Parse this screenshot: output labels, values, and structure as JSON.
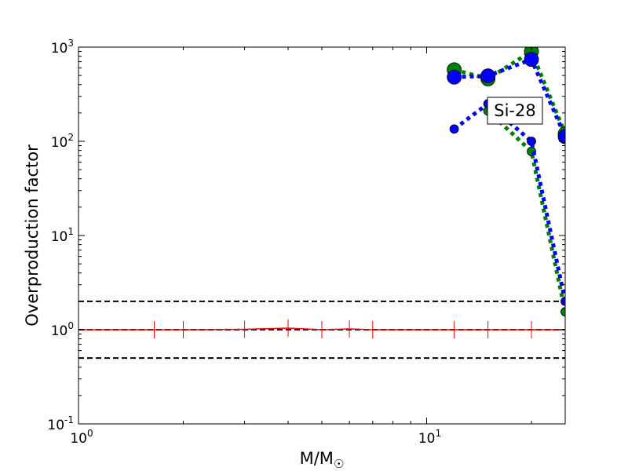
{
  "chart_data": {
    "type": "line",
    "xscale": "log",
    "yscale": "log",
    "xlim": [
      1,
      25
    ],
    "ylim": [
      0.1,
      1000
    ],
    "xlabel": "M/M",
    "xlabel_sub": "☉",
    "ylabel": "Overproduction factor",
    "x_ticks": [
      {
        "value": 1,
        "base": "10",
        "exp": "0"
      },
      {
        "value": 10,
        "base": "10",
        "exp": "1"
      }
    ],
    "y_ticks": [
      {
        "value": 0.1,
        "base": "10",
        "exp": "-1"
      },
      {
        "value": 1,
        "base": "10",
        "exp": "0"
      },
      {
        "value": 10,
        "base": "10",
        "exp": "1"
      },
      {
        "value": 100,
        "base": "10",
        "exp": "2"
      },
      {
        "value": 1000,
        "base": "10",
        "exp": "3"
      }
    ],
    "annotation": "Si-28",
    "reference_lines": [
      {
        "y": 2.0,
        "color": "#000000",
        "style": "dashed"
      },
      {
        "y": 1.0,
        "color": "#000000",
        "style": "dashed"
      },
      {
        "y": 0.5,
        "color": "#000000",
        "style": "dashed"
      }
    ],
    "series": [
      {
        "color": "#ff0000",
        "style": "solid",
        "marker": "vline",
        "x": [
          1,
          1.65,
          2,
          3,
          4,
          5,
          6,
          7,
          12,
          15,
          20,
          25
        ],
        "y": [
          1.0,
          1.0,
          1.0,
          1.01,
          1.04,
          1.0,
          1.02,
          1.0,
          1.0,
          1.0,
          1.0,
          1.0
        ]
      },
      {
        "color": "#008000",
        "style": "dotted",
        "marker": "circle",
        "x": [
          12,
          15,
          20,
          25
        ],
        "y": [
          575,
          460,
          900,
          120
        ],
        "marker_size": 9
      },
      {
        "color": "#0000ff",
        "style": "dotted",
        "marker": "circle",
        "x": [
          12,
          15,
          20,
          25
        ],
        "y": [
          480,
          495,
          740,
          112
        ],
        "marker_size": 9
      },
      {
        "color": "#008000",
        "style": "dotted",
        "marker": "circle",
        "x": [
          15,
          20,
          25
        ],
        "y": [
          210,
          78,
          1.55
        ],
        "marker_size": 5.5
      },
      {
        "color": "#0000ff",
        "style": "dotted",
        "marker": "circle",
        "x": [
          12,
          15,
          20,
          25
        ],
        "y": [
          135,
          250,
          100,
          2.0
        ],
        "marker_size": 5.5
      }
    ]
  }
}
